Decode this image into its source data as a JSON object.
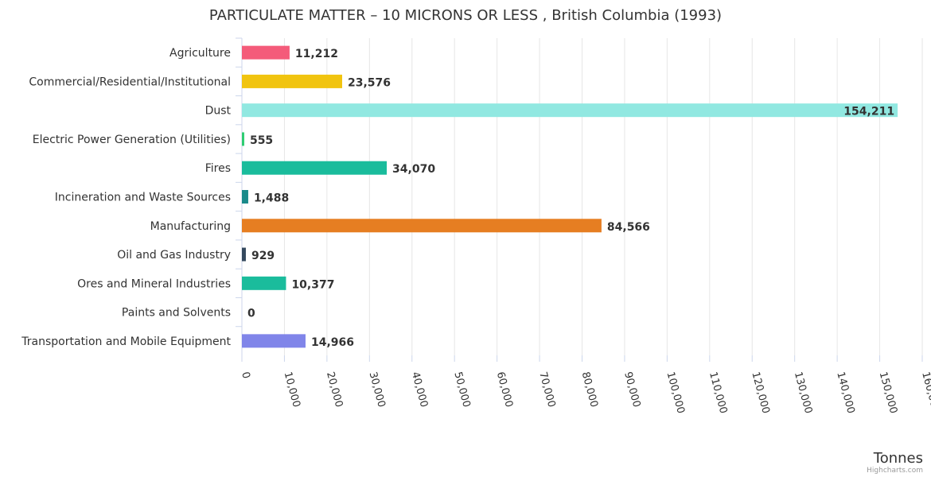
{
  "chart_data": {
    "type": "bar",
    "orientation": "horizontal",
    "title": "PARTICULATE MATTER – 10 MICRONS OR LESS , British Columbia (1993)",
    "xlabel": "",
    "ylabel": "Tonnes",
    "ylim": [
      0,
      160000
    ],
    "tick_step": 10000,
    "grid": true,
    "legend": "none",
    "categories": [
      "Agriculture",
      "Commercial/Residential/Institutional",
      "Dust",
      "Electric Power Generation (Utilities)",
      "Fires",
      "Incineration and Waste Sources",
      "Manufacturing",
      "Oil and Gas Industry",
      "Ores and Mineral Industries",
      "Paints and Solvents",
      "Transportation and Mobile Equipment"
    ],
    "values": [
      11212,
      23576,
      154211,
      555,
      34070,
      1488,
      84566,
      929,
      10377,
      0,
      14966
    ],
    "colors": [
      "#f45b7a",
      "#f1c40f",
      "#91e8e1",
      "#2ecc71",
      "#1abc9c",
      "#1a8a8a",
      "#e67e22",
      "#34495e",
      "#1abc9c",
      "#d0d0d0",
      "#8085e9"
    ]
  },
  "credits": "Highcharts.com"
}
